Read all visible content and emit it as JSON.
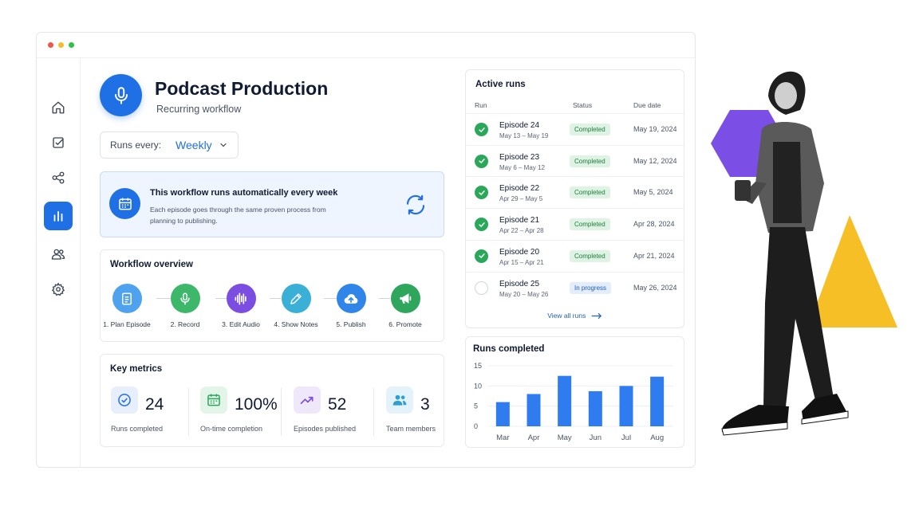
{
  "window": {
    "dot_colors": [
      "#f0544f",
      "#f6bd2b",
      "#2fc14a"
    ]
  },
  "sidebar": {
    "items": [
      {
        "icon": "home-icon",
        "active": false
      },
      {
        "icon": "checkbox-icon",
        "active": false
      },
      {
        "icon": "share-nodes-icon",
        "active": false
      },
      {
        "icon": "bar-chart-icon",
        "active": true
      },
      {
        "icon": "users-icon",
        "active": false
      },
      {
        "icon": "gear-icon",
        "active": false
      }
    ]
  },
  "header": {
    "title": "Podcast Production",
    "subtitle": "Recurring workflow"
  },
  "schedule": {
    "label": "Runs every:",
    "value": "Weekly"
  },
  "info": {
    "title": "This workflow runs automatically every week",
    "text": "Each episode goes through the same proven process from planning to publishing."
  },
  "workflow": {
    "title": "Workflow overview",
    "steps": [
      {
        "label": "1. Plan Episode",
        "icon": "document-icon",
        "color": "#4ea2ee"
      },
      {
        "label": "2. Record",
        "icon": "microphone-icon",
        "color": "#3db86a"
      },
      {
        "label": "3. Edit Audio",
        "icon": "waveform-icon",
        "color": "#7b4de0"
      },
      {
        "label": "4. Show Notes",
        "icon": "pencil-icon",
        "color": "#3bb0d6"
      },
      {
        "label": "5. Publish",
        "icon": "cloud-upload-icon",
        "color": "#2f86e8"
      },
      {
        "label": "6. Promote",
        "icon": "megaphone-icon",
        "color": "#2ea75c"
      }
    ]
  },
  "metrics": {
    "title": "Key metrics",
    "items": [
      {
        "value": "24",
        "label": "Runs completed",
        "icon": "check-circle-icon",
        "bg": "#e7effd",
        "color": "#1f6fe5"
      },
      {
        "value": "100%",
        "label": "On-time completion",
        "icon": "calendar-icon",
        "bg": "#e3f4e8",
        "color": "#2ea75c"
      },
      {
        "value": "52",
        "label": "Episodes published",
        "icon": "trend-up-icon",
        "bg": "#efe8fb",
        "color": "#7b4de0"
      },
      {
        "value": "3",
        "label": "Team members",
        "icon": "users-icon",
        "bg": "#e4f3fa",
        "color": "#2f9fd0"
      }
    ]
  },
  "active_runs": {
    "title": "Active runs",
    "columns": [
      "Run",
      "Status",
      "Due date"
    ],
    "rows": [
      {
        "name": "Episode 24",
        "dates": "May 13 – May 19",
        "status": "Completed",
        "due": "May 19, 2024",
        "done": true
      },
      {
        "name": "Episode 23",
        "dates": "May 6 – May 12",
        "status": "Completed",
        "due": "May 12, 2024",
        "done": true
      },
      {
        "name": "Episode 22",
        "dates": "Apr 29 – May 5",
        "status": "Completed",
        "due": "May 5, 2024",
        "done": true
      },
      {
        "name": "Episode 21",
        "dates": "Apr 22 – Apr 28",
        "status": "Completed",
        "due": "Apr 28, 2024",
        "done": true
      },
      {
        "name": "Episode 20",
        "dates": "Apr 15 – Apr 21",
        "status": "Completed",
        "due": "Apr 21, 2024",
        "done": true
      },
      {
        "name": "Episode 25",
        "dates": "May 20 – May 26",
        "status": "In progress",
        "due": "May 26, 2024",
        "done": false
      }
    ],
    "view_all": "View all runs"
  },
  "chart_data": {
    "type": "bar",
    "title": "Runs completed",
    "categories": [
      "Mar",
      "Apr",
      "May",
      "Jun",
      "Jul",
      "Aug"
    ],
    "values": [
      6,
      8,
      12.5,
      8.7,
      10,
      12.3
    ],
    "ylim": [
      0,
      15
    ],
    "yticks": [
      15,
      10,
      5,
      0
    ],
    "grid": true,
    "color": "#2f7bf0"
  }
}
